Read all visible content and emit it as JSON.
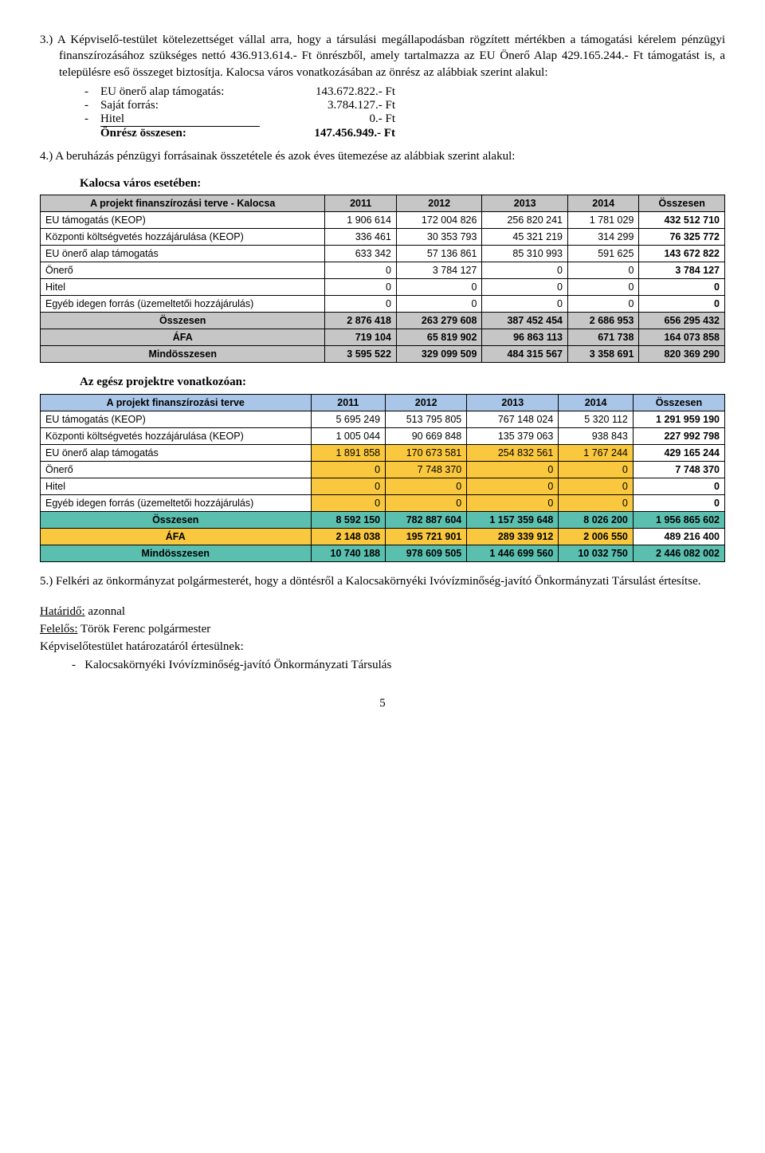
{
  "para3": {
    "num": "3.)",
    "text": "A Képviselő-testület kötelezettséget vállal arra, hogy a társulási megállapodásban rögzített mértékben a támogatási kérelem pénzügyi finanszírozásához szükséges nettó 436.913.614.- Ft önrészből, amely tartalmazza az EU Önerő Alap 429.165.244.- Ft támogatást is, a településre eső összeget biztosítja. Kalocsa város vonatkozásában az önrész az alábbiak szerint alakul:"
  },
  "list": [
    {
      "dash": "-",
      "label": "EU önerő alap támogatás:",
      "value": "143.672.822.- Ft"
    },
    {
      "dash": "-",
      "label": "Saját forrás:",
      "value": "3.784.127.- Ft"
    },
    {
      "dash": "-",
      "label": "Hitel",
      "value": "0.- Ft"
    }
  ],
  "list_total": {
    "label": "Önrész összesen:",
    "value": "147.456.949.- Ft"
  },
  "para4": {
    "num": "4.)",
    "text": "A beruházás pénzügyi forrásainak összetétele és azok éves ütemezése az alábbiak szerint alakul:"
  },
  "section1_title": "Kalocsa város esetében:",
  "table1": {
    "header_bg": "bg-grey",
    "total_bg": "bg-grey",
    "cols": [
      "A projekt finanszírozási terve - Kalocsa",
      "2011",
      "2012",
      "2013",
      "2014",
      "Összesen"
    ],
    "rows": [
      {
        "cells": [
          "EU támogatás (KEOP)",
          "1 906 614",
          "172 004 826",
          "256 820 241",
          "1 781 029",
          "432 512 710"
        ]
      },
      {
        "cells": [
          "Központi költségvetés hozzájárulása (KEOP)",
          "336 461",
          "30 353 793",
          "45 321 219",
          "314 299",
          "76 325 772"
        ]
      },
      {
        "cells": [
          "EU önerő alap támogatás",
          "633 342",
          "57 136 861",
          "85 310 993",
          "591 625",
          "143 672 822"
        ]
      },
      {
        "cells": [
          "Önerő",
          "0",
          "3 784 127",
          "0",
          "0",
          "3 784 127"
        ]
      },
      {
        "cells": [
          "Hitel",
          "0",
          "0",
          "0",
          "0",
          "0"
        ]
      },
      {
        "cells": [
          "Egyéb idegen forrás (üzemeltetői hozzájárulás)",
          "0",
          "0",
          "0",
          "0",
          "0"
        ]
      }
    ],
    "totals": [
      {
        "cells": [
          "Összesen",
          "2 876 418",
          "263 279 608",
          "387 452 454",
          "2 686 953",
          "656 295 432"
        ]
      },
      {
        "cells": [
          "ÁFA",
          "719 104",
          "65 819 902",
          "96 863 113",
          "671 738",
          "164 073 858"
        ]
      },
      {
        "cells": [
          "Mindösszesen",
          "3 595 522",
          "329 099 509",
          "484 315 567",
          "3 358 691",
          "820 369 290"
        ]
      }
    ]
  },
  "section2_title": "Az egész projektre vonatkozóan:",
  "table2": {
    "header_bg": "bg-blue",
    "total_bg": "bg-teal",
    "hi_bg": "bg-yellow",
    "cols": [
      "A projekt finanszírozási terve",
      "2011",
      "2012",
      "2013",
      "2014",
      "Összesen"
    ],
    "rows": [
      {
        "cells": [
          "EU támogatás (KEOP)",
          "5 695 249",
          "513 795 805",
          "767 148 024",
          "5 320 112",
          "1 291 959 190"
        ],
        "hi": false
      },
      {
        "cells": [
          "Központi költségvetés hozzájárulása (KEOP)",
          "1 005 044",
          "90 669 848",
          "135 379 063",
          "938 843",
          "227 992 798"
        ],
        "hi": false
      },
      {
        "cells": [
          "EU önerő alap támogatás",
          "1 891 858",
          "170 673 581",
          "254 832 561",
          "1 767 244",
          "429 165 244"
        ],
        "hi": true
      },
      {
        "cells": [
          "Önerő",
          "0",
          "7 748 370",
          "0",
          "0",
          "7 748 370"
        ],
        "hi": true
      },
      {
        "cells": [
          "Hitel",
          "0",
          "0",
          "0",
          "0",
          "0"
        ],
        "hi": true
      },
      {
        "cells": [
          "Egyéb idegen forrás (üzemeltetői hozzájárulás)",
          "0",
          "0",
          "0",
          "0",
          "0"
        ],
        "hi": true
      }
    ],
    "totals": [
      {
        "cells": [
          "Összesen",
          "8 592 150",
          "782 887 604",
          "1 157 359 648",
          "8 026 200",
          "1 956 865 602"
        ],
        "bg": "bg-teal"
      },
      {
        "cells": [
          "ÁFA",
          "2 148 038",
          "195 721 901",
          "289 339 912",
          "2 006 550",
          "489 216 400"
        ],
        "bg": "bg-yellow"
      },
      {
        "cells": [
          "Mindösszesen",
          "10 740 188",
          "978 609 505",
          "1 446 699 560",
          "10 032 750",
          "2 446 082 002"
        ],
        "bg": "bg-teal"
      }
    ]
  },
  "para5": {
    "num": "5.)",
    "text": "Felkéri az önkormányzat polgármesterét, hogy a döntésről a Kalocsakörnyéki Ivóvízminőség-javító Önkormányzati Társulást értesítse."
  },
  "footer": {
    "l1a": "Határidő:",
    "l1b": " azonnal",
    "l2a": "Felelős:",
    "l2b": " Török Ferenc polgármester",
    "l3": "Képviselőtestület határozatáról értesülnek:",
    "l4": "Kalocsakörnyéki Ivóvízminőség-javító Önkormányzati Társulás"
  },
  "page_number": "5"
}
